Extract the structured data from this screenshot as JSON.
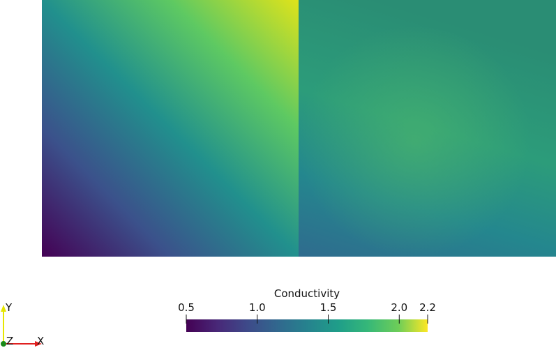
{
  "colorbar": {
    "title": "Conductivity",
    "range": [
      0.5,
      2.2
    ],
    "ticks": [
      0.5,
      {
        "value": 1,
        "label": "1.0"
      },
      1.5,
      {
        "value": 2,
        "label": "2.0"
      },
      2.2
    ]
  },
  "axes_triad": {
    "x": "X",
    "y": "Y",
    "z": "Z"
  }
}
